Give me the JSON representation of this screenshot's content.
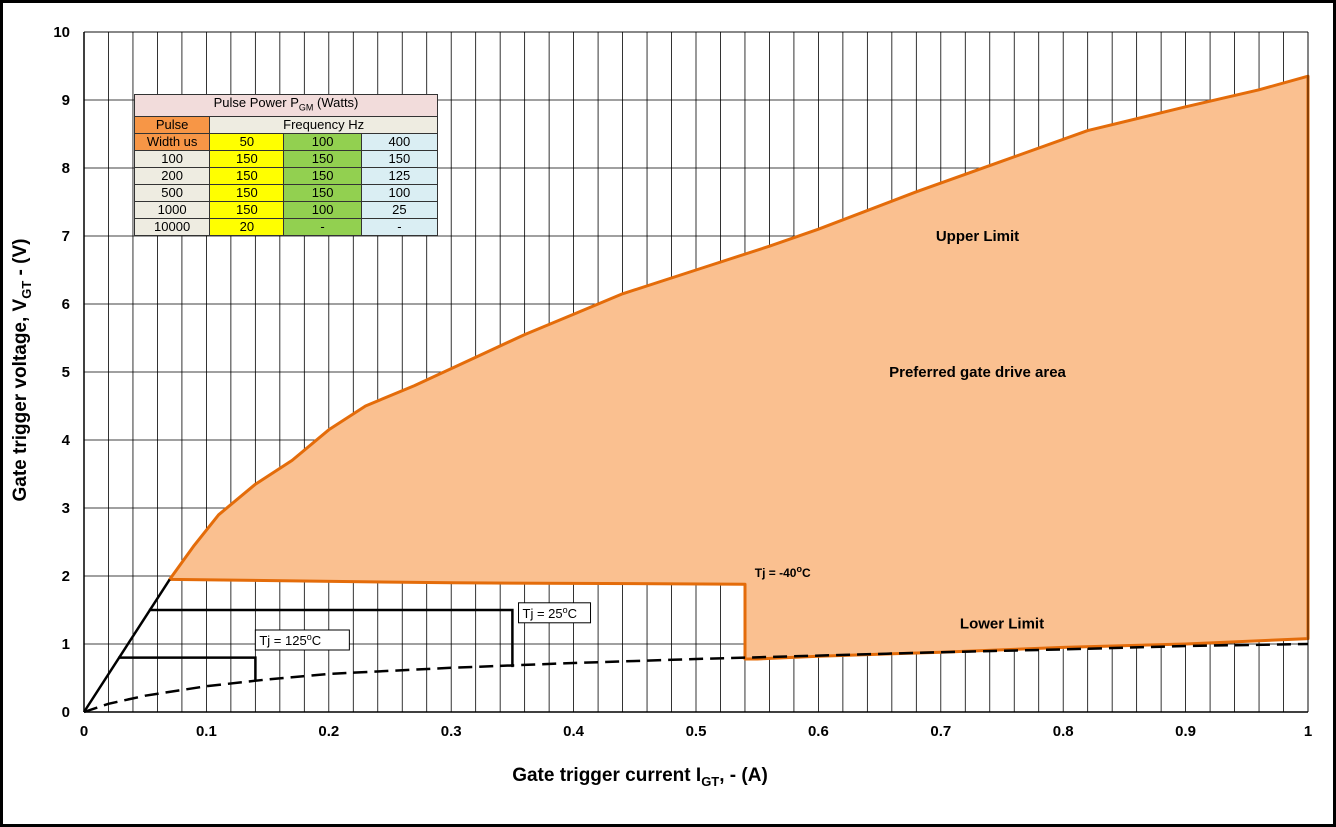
{
  "chart_data": {
    "type": "area",
    "xlabel": "Gate trigger current I",
    "xlabel_sub": "GT",
    "xlabel_suffix": ", - (A)",
    "ylabel": "Gate trigger voltage, V",
    "ylabel_sub": "GT",
    "ylabel_suffix": " - (V)",
    "xlim": [
      0,
      1
    ],
    "ylim": [
      0,
      10
    ],
    "x_ticks": [
      "0",
      "0.1",
      "0.2",
      "0.3",
      "0.4",
      "0.5",
      "0.6",
      "0.7",
      "0.8",
      "0.9",
      "1"
    ],
    "y_ticks": [
      "0",
      "1",
      "2",
      "3",
      "4",
      "5",
      "6",
      "7",
      "8",
      "9",
      "10"
    ],
    "grid": true,
    "preferred_area": {
      "fill": "#fac090",
      "stroke": "#e46c0a",
      "upper_limit": [
        [
          0.07,
          1.95
        ],
        [
          0.09,
          2.45
        ],
        [
          0.11,
          2.9
        ],
        [
          0.14,
          3.35
        ],
        [
          0.17,
          3.7
        ],
        [
          0.2,
          4.15
        ],
        [
          0.23,
          4.5
        ],
        [
          0.27,
          4.8
        ],
        [
          0.3,
          5.05
        ],
        [
          0.33,
          5.3
        ],
        [
          0.36,
          5.55
        ],
        [
          0.4,
          5.85
        ],
        [
          0.44,
          6.15
        ],
        [
          0.5,
          6.5
        ],
        [
          0.56,
          6.85
        ],
        [
          0.6,
          7.1
        ],
        [
          0.68,
          7.65
        ],
        [
          0.75,
          8.1
        ],
        [
          0.82,
          8.55
        ],
        [
          0.9,
          8.9
        ],
        [
          0.96,
          9.15
        ],
        [
          1.0,
          9.35
        ]
      ],
      "lower_limit": [
        [
          1.0,
          1.08
        ],
        [
          0.9,
          1.0
        ],
        [
          0.8,
          0.95
        ],
        [
          0.7,
          0.88
        ],
        [
          0.6,
          0.82
        ],
        [
          0.55,
          0.78
        ],
        [
          0.54,
          0.78
        ],
        [
          0.54,
          1.88
        ],
        [
          0.3,
          1.9
        ],
        [
          0.07,
          1.95
        ]
      ]
    },
    "dashed_curve": [
      [
        0.0,
        0.0
      ],
      [
        0.02,
        0.12
      ],
      [
        0.05,
        0.24
      ],
      [
        0.1,
        0.38
      ],
      [
        0.15,
        0.48
      ],
      [
        0.2,
        0.56
      ],
      [
        0.3,
        0.65
      ],
      [
        0.4,
        0.72
      ],
      [
        0.5,
        0.78
      ],
      [
        0.6,
        0.83
      ],
      [
        0.7,
        0.88
      ],
      [
        0.8,
        0.92
      ],
      [
        0.9,
        0.97
      ],
      [
        1.0,
        1.0
      ]
    ],
    "diagonal_line": [
      [
        0.0,
        0.0
      ],
      [
        0.07,
        1.95
      ]
    ],
    "step_25": [
      [
        0.053,
        1.5
      ],
      [
        0.35,
        1.5
      ],
      [
        0.35,
        0.66
      ]
    ],
    "step_125": [
      [
        0.028,
        0.8
      ],
      [
        0.14,
        0.8
      ],
      [
        0.14,
        0.47
      ]
    ],
    "annotations": {
      "upper_limit": {
        "text": "Upper Limit",
        "x": 0.73,
        "y": 7.0
      },
      "preferred": {
        "text": "Preferred gate drive area",
        "x": 0.73,
        "y": 5.0
      },
      "lower_limit": {
        "text": "Lower Limit",
        "x": 0.75,
        "y": 1.3
      },
      "tj_minus40": {
        "text": "Tj = -40",
        "sup": "o",
        "unit": "C",
        "x": 0.548,
        "y": 2.0
      },
      "tj_25": {
        "text": "Tj = 25",
        "sup": "o",
        "unit": "C",
        "x": 0.355,
        "y": 1.4
      },
      "tj_125": {
        "text": "Tj = 125",
        "sup": "o",
        "unit": "C",
        "x": 0.14,
        "y": 1.0
      }
    }
  },
  "table": {
    "title": "Pulse Power P",
    "title_sub": "GM",
    "title_suffix": " (Watts)",
    "pulse_label": "Pulse",
    "width_label": "Width us",
    "frequency_label": "Frequency Hz",
    "frequencies": [
      "50",
      "100",
      "400"
    ],
    "rows": [
      {
        "width": "100",
        "f50": "150",
        "f100": "150",
        "f400": "150"
      },
      {
        "width": "200",
        "f50": "150",
        "f100": "150",
        "f400": "125"
      },
      {
        "width": "500",
        "f50": "150",
        "f100": "150",
        "f400": "100"
      },
      {
        "width": "1000",
        "f50": "150",
        "f100": "100",
        "f400": "25"
      },
      {
        "width": "10000",
        "f50": "20",
        "f100": "-",
        "f400": "-"
      }
    ]
  }
}
